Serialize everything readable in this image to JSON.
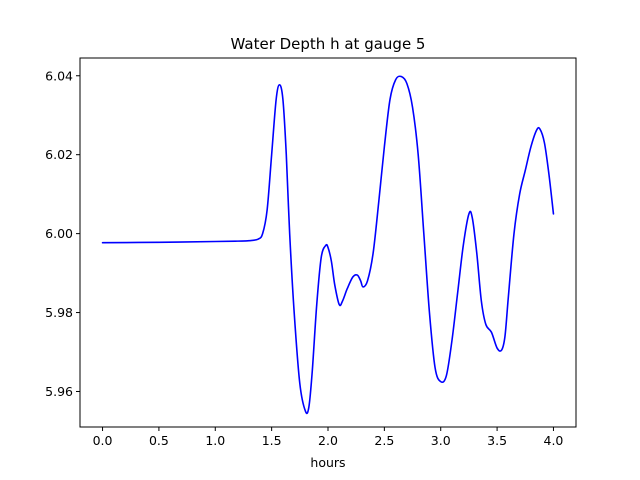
{
  "chart_data": {
    "type": "line",
    "title": "Water Depth h at gauge 5",
    "xlabel": "hours",
    "ylabel": "",
    "xlim": [
      -0.2,
      4.2
    ],
    "ylim": [
      5.951,
      6.0445
    ],
    "xticks": [
      0.0,
      0.5,
      1.0,
      1.5,
      2.0,
      2.5,
      3.0,
      3.5,
      4.0
    ],
    "xtick_labels": [
      "0.0",
      "0.5",
      "1.0",
      "1.5",
      "2.0",
      "2.5",
      "3.0",
      "3.5",
      "4.0"
    ],
    "yticks": [
      5.96,
      5.98,
      6.0,
      6.02,
      6.04
    ],
    "ytick_labels": [
      "5.96",
      "5.98",
      "6.00",
      "6.02",
      "6.04"
    ],
    "grid": false,
    "series": [
      {
        "color": "#0000ff",
        "x": [
          0.0,
          0.5,
          1.0,
          1.2,
          1.3,
          1.38,
          1.42,
          1.46,
          1.5,
          1.54,
          1.57,
          1.6,
          1.63,
          1.66,
          1.7,
          1.75,
          1.8,
          1.83,
          1.86,
          1.9,
          1.94,
          1.98,
          2.0,
          2.03,
          2.06,
          2.1,
          2.13,
          2.17,
          2.22,
          2.26,
          2.29,
          2.31,
          2.35,
          2.4,
          2.45,
          2.5,
          2.55,
          2.6,
          2.65,
          2.7,
          2.75,
          2.8,
          2.85,
          2.9,
          2.95,
          3.0,
          3.05,
          3.1,
          3.15,
          3.2,
          3.25,
          3.28,
          3.32,
          3.36,
          3.4,
          3.45,
          3.5,
          3.54,
          3.57,
          3.6,
          3.65,
          3.7,
          3.75,
          3.8,
          3.85,
          3.88,
          3.92,
          3.96,
          4.0
        ],
        "y": [
          5.9977,
          5.9978,
          5.998,
          5.9981,
          5.9982,
          5.9986,
          6.0,
          6.006,
          6.02,
          6.034,
          6.0377,
          6.034,
          6.02,
          6.0,
          5.98,
          5.962,
          5.955,
          5.956,
          5.965,
          5.982,
          5.994,
          5.997,
          5.9965,
          5.993,
          5.987,
          5.982,
          5.983,
          5.986,
          5.989,
          5.9895,
          5.988,
          5.9865,
          5.988,
          5.995,
          6.008,
          6.022,
          6.034,
          6.039,
          6.0398,
          6.038,
          6.032,
          6.02,
          6.0,
          5.98,
          5.966,
          5.9625,
          5.964,
          5.973,
          5.985,
          5.997,
          6.005,
          6.004,
          5.995,
          5.983,
          5.977,
          5.975,
          5.971,
          5.9705,
          5.974,
          5.984,
          6.0,
          6.01,
          6.016,
          6.022,
          6.0262,
          6.0265,
          6.023,
          6.015,
          6.005
        ]
      }
    ]
  }
}
